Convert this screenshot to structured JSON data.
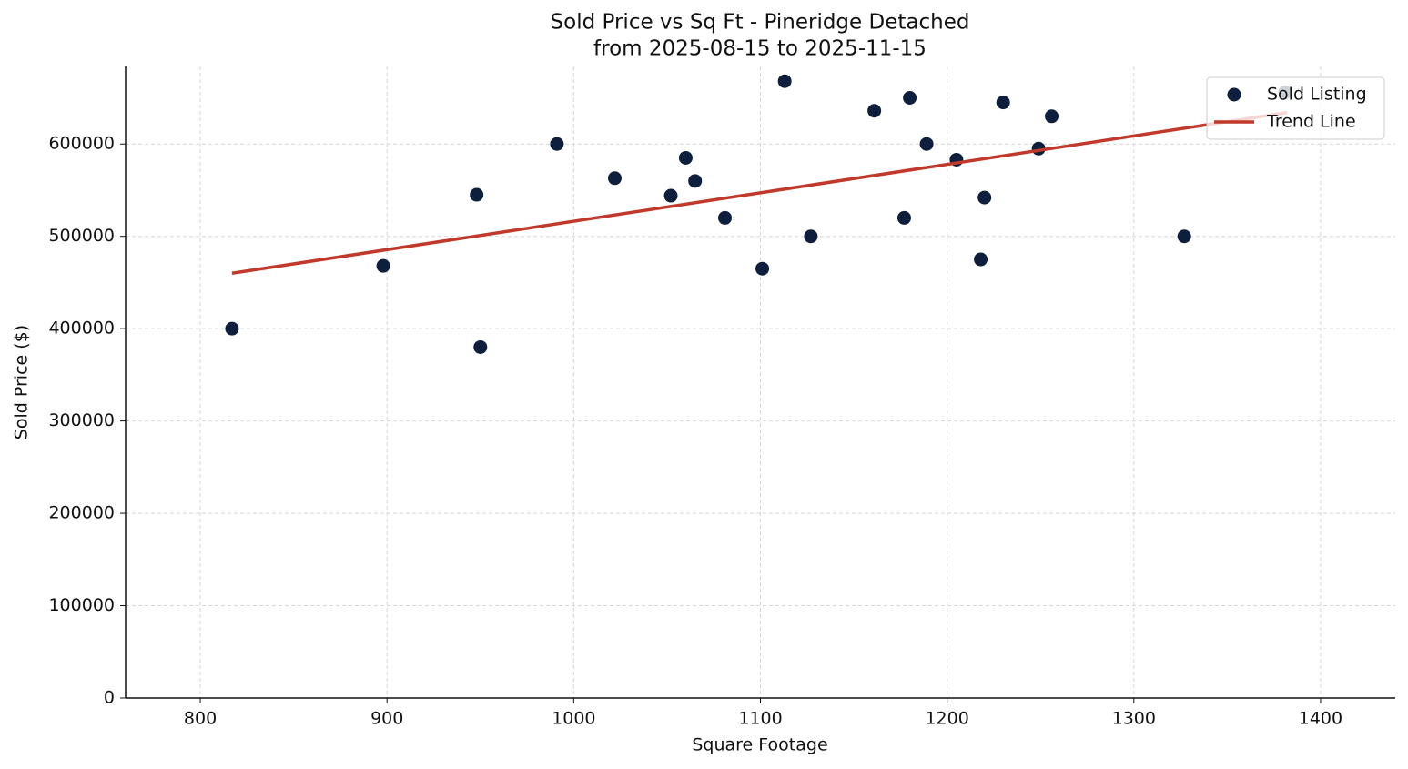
{
  "chart_data": {
    "type": "scatter",
    "title": "Sold Price vs Sq Ft - Pineridge Detached",
    "subtitle": "from 2025-08-15 to 2025-11-15",
    "x_label": "Square Footage",
    "y_label": "Sold Price ($)",
    "xlim": [
      760,
      1440
    ],
    "ylim": [
      0,
      684000
    ],
    "xticks": [
      800,
      900,
      1000,
      1100,
      1200,
      1300,
      1400
    ],
    "yticks": [
      0,
      100000,
      200000,
      300000,
      400000,
      500000,
      600000
    ],
    "grid": true,
    "legend": "upper right",
    "series": [
      {
        "name": "Sold Listing",
        "type": "scatter",
        "color": "#0d1f3c",
        "x": [
          817,
          898,
          948,
          950,
          991,
          1022,
          1052,
          1060,
          1065,
          1081,
          1101,
          1113,
          1127,
          1161,
          1177,
          1180,
          1189,
          1205,
          1218,
          1220,
          1230,
          1249,
          1256,
          1327,
          1381
        ],
        "values": [
          400000,
          468000,
          545000,
          380000,
          600000,
          563000,
          544000,
          585000,
          560000,
          520000,
          465000,
          668000,
          500000,
          636000,
          520000,
          650000,
          600000,
          583000,
          475000,
          542000,
          645000,
          595000,
          630000,
          500000,
          656000
        ]
      },
      {
        "name": "Trend Line",
        "type": "line",
        "color": "#c0392b",
        "x": [
          817,
          1382
        ],
        "values": [
          460000,
          634000
        ]
      }
    ]
  }
}
